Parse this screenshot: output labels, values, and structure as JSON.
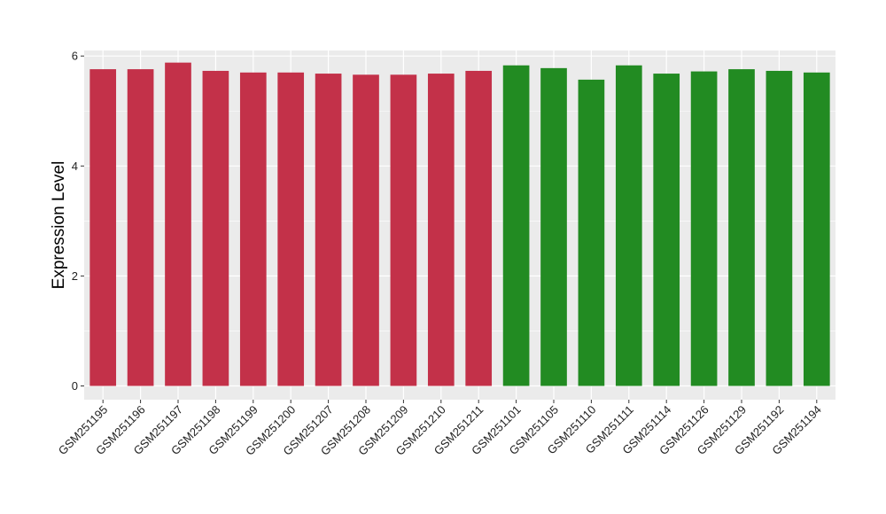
{
  "chart_data": {
    "type": "bar",
    "ylabel": "Expression Level",
    "xlabel": "",
    "ylim": [
      -0.25,
      6.1
    ],
    "yticks": [
      0,
      2,
      4,
      6
    ],
    "grid": true,
    "colors": {
      "group_a": "#C33149",
      "group_b": "#228B22",
      "panel": "#EBEBEB",
      "grid": "#FFFFFF"
    },
    "categories": [
      "GSM251195",
      "GSM251196",
      "GSM251197",
      "GSM251198",
      "GSM251199",
      "GSM251200",
      "GSM251207",
      "GSM251208",
      "GSM251209",
      "GSM251210",
      "GSM251211",
      "GSM251101",
      "GSM251105",
      "GSM251110",
      "GSM251111",
      "GSM251114",
      "GSM251126",
      "GSM251129",
      "GSM251192",
      "GSM251194"
    ],
    "values": [
      5.76,
      5.76,
      5.88,
      5.73,
      5.7,
      5.7,
      5.68,
      5.66,
      5.66,
      5.68,
      5.73,
      5.83,
      5.78,
      5.57,
      5.83,
      5.68,
      5.72,
      5.76,
      5.73,
      5.7
    ],
    "bar_groups": [
      "group_a",
      "group_a",
      "group_a",
      "group_a",
      "group_a",
      "group_a",
      "group_a",
      "group_a",
      "group_a",
      "group_a",
      "group_a",
      "group_b",
      "group_b",
      "group_b",
      "group_b",
      "group_b",
      "group_b",
      "group_b",
      "group_b",
      "group_b"
    ]
  }
}
